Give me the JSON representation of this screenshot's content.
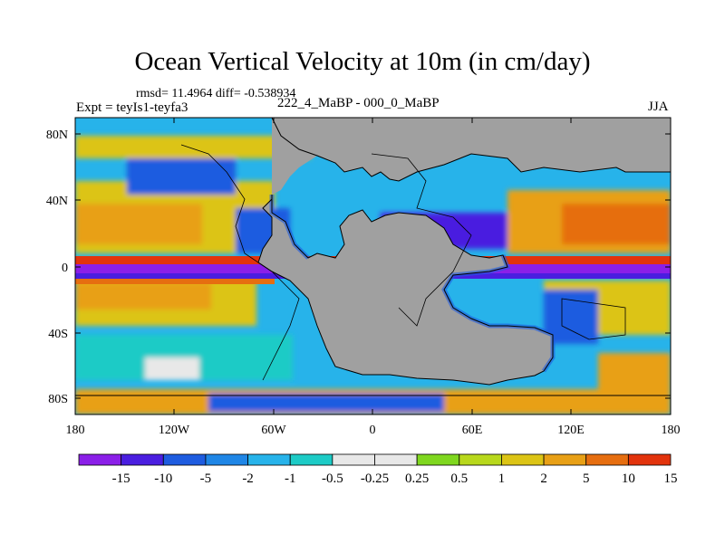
{
  "title": "Ocean Vertical Velocity at 10m (in cm/day)",
  "stats": "rmsd= 11.4964 diff= -0.538934",
  "left_label": "Expt = teyIs1-teyfa3",
  "center_label": "222_4_MaBP - 000_0_MaBP",
  "right_label": "JJA",
  "lat_labels": [
    "80N",
    "40N",
    "0",
    "40S",
    "80S"
  ],
  "lon_labels": [
    "180",
    "120W",
    "60W",
    "0",
    "60E",
    "120E",
    "180"
  ],
  "colorbar": {
    "colors": [
      "#8b1fe8",
      "#4a1ee0",
      "#1e5ce0",
      "#1f86e6",
      "#27b3ea",
      "#1dcbc6",
      "#e8e8e8",
      "#e8e8e8",
      "#7fd71f",
      "#b8d81c",
      "#dcc415",
      "#e8a016",
      "#e66e10",
      "#e2330c"
    ],
    "labels": [
      "-15",
      "-10",
      "-5",
      "-2",
      "-1",
      "-0.5",
      "-0.25",
      "0.25",
      "0.5",
      "1",
      "2",
      "5",
      "10",
      "15"
    ]
  },
  "colors": {
    "land": "#a0a0a0",
    "strong_upwelling": "#e2330c",
    "strong_downwelling": "#8b1fe8"
  }
}
